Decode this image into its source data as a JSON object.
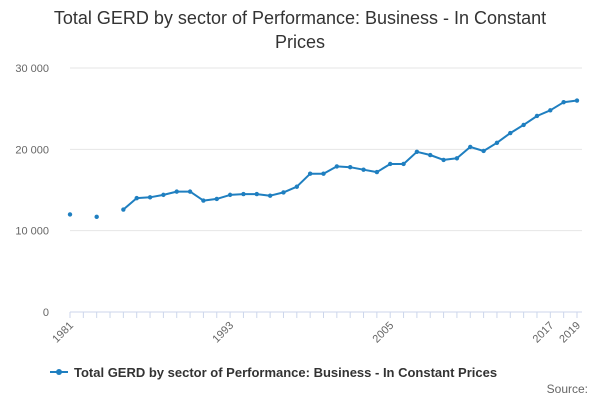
{
  "chart_data": {
    "type": "line",
    "title": "Total GERD by sector of Performance: Business - In Constant Prices",
    "x": [
      1981,
      1982,
      1983,
      1984,
      1985,
      1986,
      1987,
      1988,
      1989,
      1990,
      1991,
      1992,
      1993,
      1994,
      1995,
      1996,
      1997,
      1998,
      1999,
      2000,
      2001,
      2002,
      2003,
      2004,
      2005,
      2006,
      2007,
      2008,
      2009,
      2010,
      2011,
      2012,
      2013,
      2014,
      2015,
      2016,
      2017,
      2018,
      2019
    ],
    "series": [
      {
        "name": "Total GERD by sector of Performance: Business - In Constant Prices",
        "values": [
          12000,
          null,
          11700,
          null,
          12600,
          14000,
          14100,
          14400,
          14800,
          14800,
          13700,
          13900,
          14400,
          14500,
          14500,
          14300,
          14700,
          15400,
          17000,
          17000,
          17900,
          17800,
          17500,
          17200,
          18200,
          18200,
          19700,
          19300,
          18700,
          18900,
          20300,
          19800,
          20800,
          22000,
          23000,
          24100,
          24800,
          25800,
          26000
        ]
      }
    ],
    "xticks": [
      "1981",
      "1993",
      "2005",
      "2017",
      "2019"
    ],
    "yticks": [
      "0",
      "10 000",
      "20 000",
      "30 000"
    ],
    "ylim": [
      0,
      30000
    ],
    "xlim": [
      1981,
      2019
    ],
    "xlabel": "",
    "ylabel": "",
    "grid": true,
    "legend_position": "bottom-left",
    "color": "#1f7fc0"
  },
  "credits": "Source:"
}
